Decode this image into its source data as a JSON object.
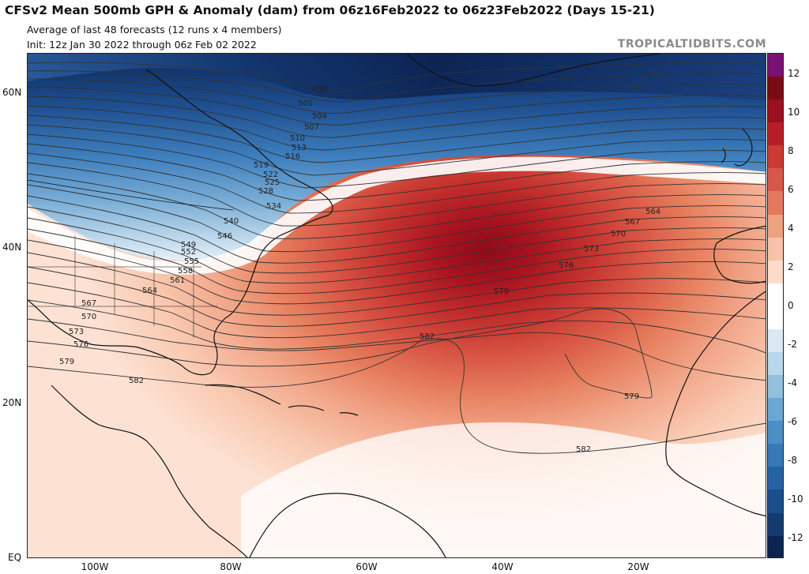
{
  "header": {
    "title": "CFSv2 Mean 500mb GPH & Anomaly (dam) from 06z16Feb2022 to 06z23Feb2022 (Days 15-21)",
    "subtitle1": "Average of last 48 forecasts (12 runs x 4 members)",
    "subtitle2": "Init: 12z Jan 30 2022 through 06z Feb 02 2022",
    "brand": "TROPICALTIDBITS.COM"
  },
  "axes": {
    "lat_labels": [
      "60N",
      "40N",
      "20N",
      "EQ"
    ],
    "lon_labels": [
      "100W",
      "80W",
      "60W",
      "40W",
      "20W"
    ]
  },
  "contours": {
    "labels": [
      "498",
      "501",
      "504",
      "507",
      "510",
      "513",
      "516",
      "519",
      "522",
      "525",
      "528",
      "534",
      "540",
      "546",
      "549",
      "552",
      "555",
      "558",
      "561",
      "564",
      "567",
      "570",
      "573",
      "576",
      "579",
      "582",
      "564",
      "567",
      "570",
      "573",
      "576",
      "579",
      "582",
      "579",
      "582"
    ]
  },
  "colorbar": {
    "labels": [
      "12",
      "10",
      "8",
      "6",
      "4",
      "2",
      "0",
      "-2",
      "-4",
      "-6",
      "-8",
      "-10",
      "-12"
    ],
    "colors": [
      "#7b1075",
      "#7a0a14",
      "#9b0f1e",
      "#b81d27",
      "#cb3a33",
      "#d9574a",
      "#e6775f",
      "#efa081",
      "#f7c2a8",
      "#fcdcc9",
      "#ffffff",
      "#ffffff",
      "#dbe9f4",
      "#b9d7ea",
      "#92c0dd",
      "#6aa7d2",
      "#4b8fc5",
      "#3579b8",
      "#2561a4",
      "#1c4d8c",
      "#143a70",
      "#0c2452"
    ]
  },
  "colors": {
    "land_line": "#111111",
    "contour_line": "#333333"
  }
}
